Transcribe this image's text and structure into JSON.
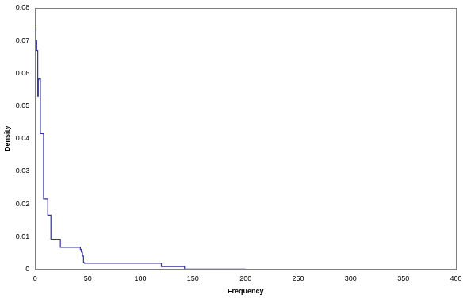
{
  "chart_data": {
    "type": "line",
    "x_label": "Frequency",
    "y_label": "Density",
    "x": [
      0,
      0.5,
      1.5,
      2.5,
      3,
      3.5,
      5,
      5.5,
      8,
      8.2,
      12,
      12.5,
      15,
      15.3,
      24,
      24.3,
      43,
      44,
      45,
      46,
      47,
      120,
      142,
      200
    ],
    "values": [
      0.046,
      0.074,
      0.07,
      0.067,
      0.053,
      0.058,
      0.0585,
      0.0415,
      0.0415,
      0.0215,
      0.0215,
      0.0165,
      0.0165,
      0.0092,
      0.0092,
      0.0067,
      0.0067,
      0.006,
      0.0052,
      0.004,
      0.002,
      0.0018,
      0.0008,
      0
    ],
    "color": "#333399",
    "line_style": "step",
    "xlim": [
      0,
      400
    ],
    "xticks": [
      0,
      50,
      100,
      150,
      200,
      250,
      300,
      350,
      400
    ],
    "ylim": [
      0,
      0.08
    ],
    "yticks": [
      0,
      0.01,
      0.02,
      0.03,
      0.04,
      0.05,
      0.06,
      0.07,
      0.08
    ],
    "grid": false
  }
}
